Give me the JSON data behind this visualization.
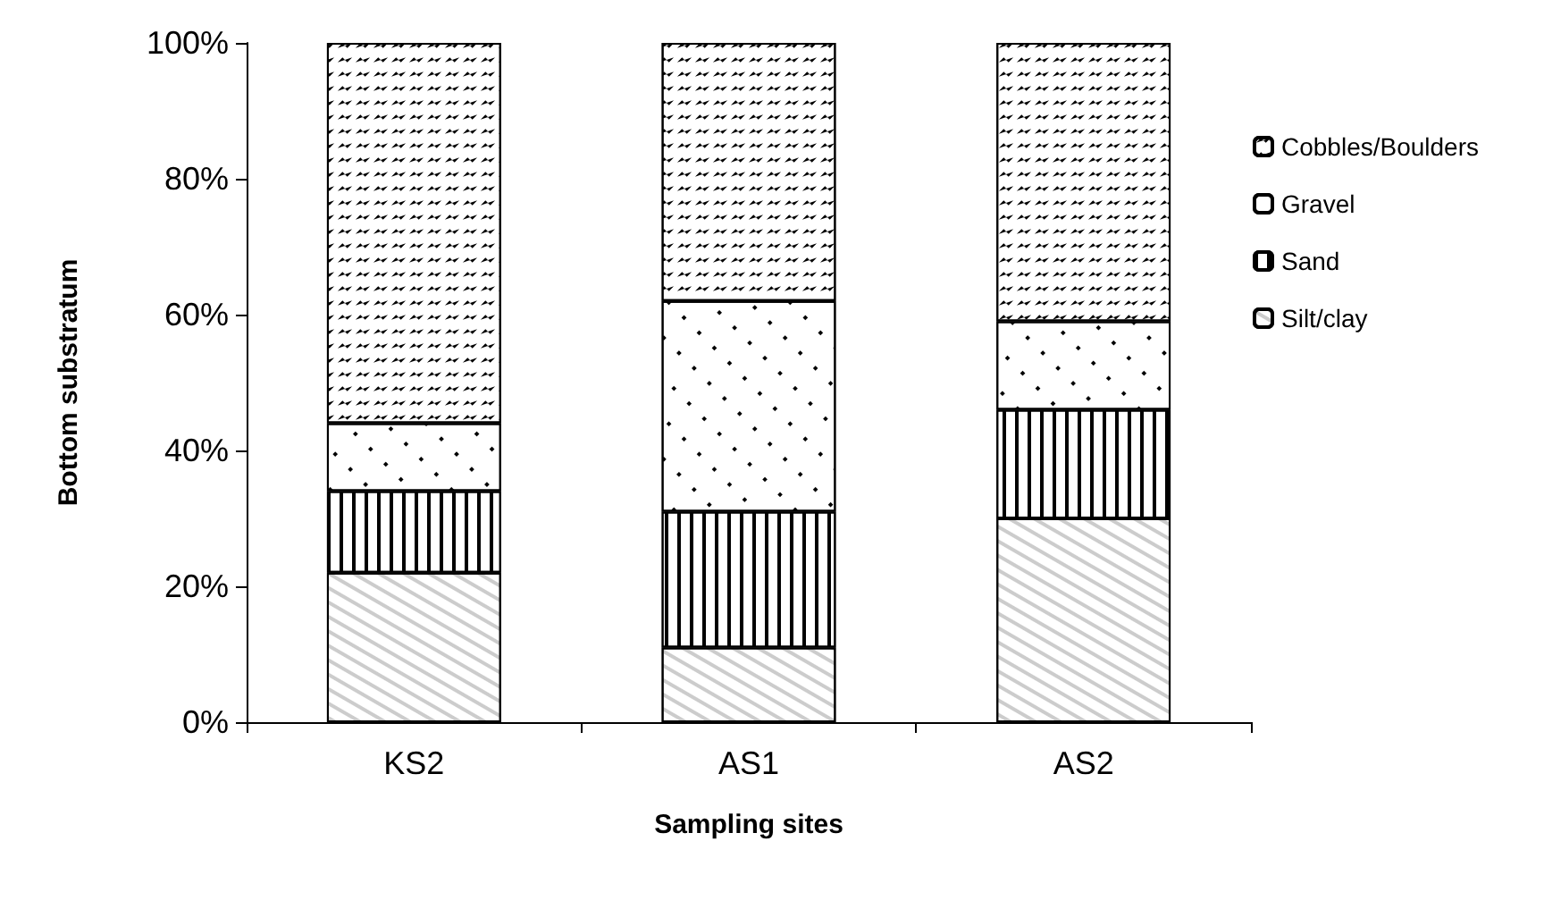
{
  "chart_data": {
    "type": "bar",
    "stacked": true,
    "xlabel": "Sampling sites",
    "ylabel": "Bottom substratum",
    "categories": [
      "KS2",
      "AS1",
      "AS2"
    ],
    "series": [
      {
        "name": "Silt/clay",
        "color": "#ffffff",
        "values": [
          22,
          11,
          30
        ]
      },
      {
        "name": "Sand",
        "color": "#ffffff",
        "values": [
          12,
          20,
          16
        ]
      },
      {
        "name": "Gravel",
        "color": "#ffffff",
        "values": [
          10,
          31,
          13
        ]
      },
      {
        "name": "Cobbles/Boulders",
        "color": "#ffffff",
        "values": [
          56,
          38,
          41
        ]
      }
    ],
    "ylim": [
      0,
      100
    ],
    "yticks": [
      {
        "value": 0,
        "label": "0%"
      },
      {
        "value": 20,
        "label": "20%"
      },
      {
        "value": 40,
        "label": "40%"
      },
      {
        "value": 60,
        "label": "60%"
      },
      {
        "value": 80,
        "label": "80%"
      },
      {
        "value": 100,
        "label": "100%"
      }
    ],
    "grid": false,
    "legend": "right"
  }
}
